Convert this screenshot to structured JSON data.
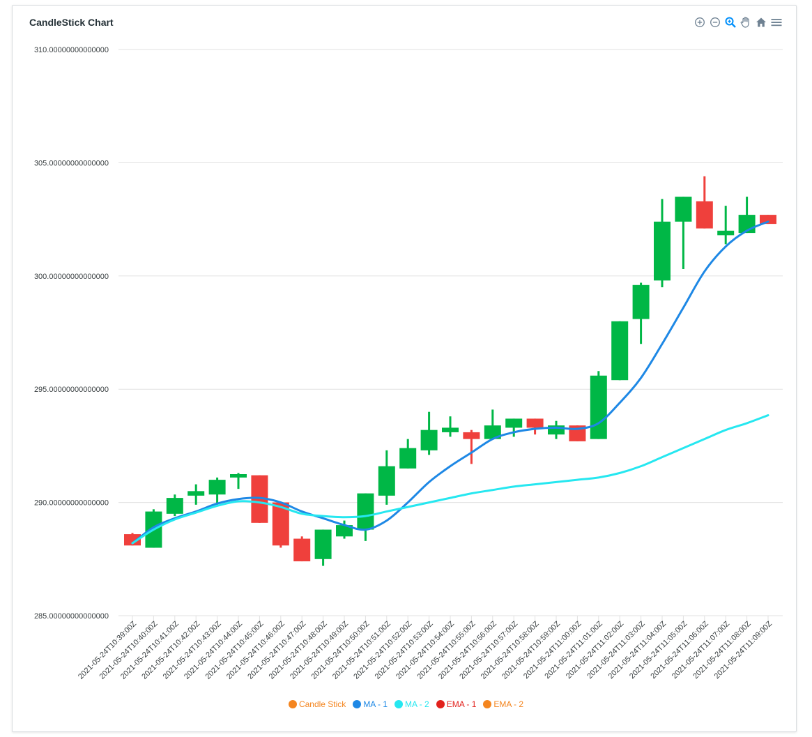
{
  "chart_data": {
    "type": "candlestick",
    "title": "CandleStick Chart",
    "ylim": [
      285,
      310
    ],
    "y_ticks": [
      "285.00000000000000",
      "290.00000000000000",
      "295.00000000000000",
      "300.00000000000000",
      "305.00000000000000",
      "310.00000000000000"
    ],
    "y_tick_values": [
      285,
      290,
      295,
      300,
      305,
      310
    ],
    "categories": [
      "2021-05-24T10:39:00Z",
      "2021-05-24T10:40:00Z",
      "2021-05-24T10:41:00Z",
      "2021-05-24T10:42:00Z",
      "2021-05-24T10:43:00Z",
      "2021-05-24T10:44:00Z",
      "2021-05-24T10:45:00Z",
      "2021-05-24T10:46:00Z",
      "2021-05-24T10:47:00Z",
      "2021-05-24T10:48:00Z",
      "2021-05-24T10:49:00Z",
      "2021-05-24T10:50:00Z",
      "2021-05-24T10:51:00Z",
      "2021-05-24T10:52:00Z",
      "2021-05-24T10:53:00Z",
      "2021-05-24T10:54:00Z",
      "2021-05-24T10:55:00Z",
      "2021-05-24T10:56:00Z",
      "2021-05-24T10:57:00Z",
      "2021-05-24T10:58:00Z",
      "2021-05-24T10:59:00Z",
      "2021-05-24T11:00:00Z",
      "2021-05-24T11:01:00Z",
      "2021-05-24T11:02:00Z",
      "2021-05-24T11:03:00Z",
      "2021-05-24T11:04:00Z",
      "2021-05-24T11:05:00Z",
      "2021-05-24T11:06:00Z",
      "2021-05-24T11:07:00Z",
      "2021-05-24T11:08:00Z",
      "2021-05-24T11:09:00Z"
    ],
    "ohlc": [
      [
        288.6,
        288.65,
        288.1,
        288.1
      ],
      [
        288.0,
        289.7,
        288.0,
        289.6
      ],
      [
        289.5,
        290.35,
        289.4,
        290.2
      ],
      [
        290.3,
        290.8,
        289.9,
        290.5
      ],
      [
        290.35,
        291.1,
        289.9,
        291.0
      ],
      [
        291.1,
        291.3,
        290.6,
        291.25
      ],
      [
        291.2,
        291.2,
        289.1,
        289.1
      ],
      [
        290.0,
        290.0,
        288.0,
        288.1
      ],
      [
        288.4,
        288.5,
        287.4,
        287.4
      ],
      [
        287.5,
        288.8,
        287.2,
        288.8
      ],
      [
        288.5,
        289.2,
        288.4,
        289.0
      ],
      [
        288.8,
        290.4,
        288.3,
        290.4
      ],
      [
        290.3,
        292.3,
        289.9,
        291.6
      ],
      [
        291.5,
        292.8,
        291.5,
        292.4
      ],
      [
        292.3,
        294.0,
        292.1,
        293.2
      ],
      [
        293.1,
        293.8,
        292.9,
        293.3
      ],
      [
        293.1,
        293.2,
        291.7,
        292.8
      ],
      [
        292.8,
        294.1,
        292.8,
        293.4
      ],
      [
        293.3,
        293.7,
        292.9,
        293.7
      ],
      [
        293.7,
        293.7,
        293.0,
        293.3
      ],
      [
        293.0,
        293.6,
        292.8,
        293.4
      ],
      [
        293.4,
        293.4,
        292.7,
        292.7
      ],
      [
        292.8,
        295.8,
        292.8,
        295.6
      ],
      [
        295.4,
        298.0,
        295.4,
        298.0
      ],
      [
        298.1,
        299.7,
        297.0,
        299.6
      ],
      [
        299.8,
        303.4,
        299.5,
        302.4
      ],
      [
        302.4,
        303.5,
        300.3,
        303.5
      ],
      [
        303.3,
        304.4,
        302.1,
        302.1
      ],
      [
        301.8,
        303.1,
        301.4,
        302.0
      ],
      [
        301.9,
        303.5,
        301.9,
        302.7
      ],
      [
        302.7,
        302.7,
        302.3,
        302.3
      ]
    ],
    "series": [
      {
        "name": "MA - 1",
        "color": "#1e88e5",
        "values": [
          288.2,
          288.9,
          289.3,
          289.6,
          289.95,
          290.15,
          290.2,
          290.0,
          289.6,
          289.3,
          289.0,
          288.8,
          289.2,
          290.0,
          290.9,
          291.6,
          292.2,
          292.8,
          293.1,
          293.25,
          293.3,
          293.25,
          293.5,
          294.4,
          295.5,
          297.0,
          298.6,
          300.2,
          301.3,
          302.0,
          302.4
        ]
      },
      {
        "name": "MA - 2",
        "color": "#26e7f0",
        "values": [
          288.2,
          288.8,
          289.25,
          289.55,
          289.85,
          290.05,
          290.0,
          289.8,
          289.5,
          289.4,
          289.35,
          289.4,
          289.6,
          289.8,
          290.0,
          290.2,
          290.4,
          290.55,
          290.7,
          290.8,
          290.9,
          291.0,
          291.1,
          291.3,
          291.6,
          292.0,
          292.4,
          292.8,
          293.2,
          293.5,
          293.85
        ]
      }
    ],
    "legend": [
      {
        "name": "Candle Stick",
        "color": "#f4851f"
      },
      {
        "name": "MA - 1",
        "color": "#1e88e5"
      },
      {
        "name": "MA - 2",
        "color": "#26e7f0"
      },
      {
        "name": "EMA - 1",
        "color": "#e2211c"
      },
      {
        "name": "EMA - 2",
        "color": "#f4851f"
      }
    ],
    "up_color": "#00b746",
    "down_color": "#ef403c",
    "grid": true,
    "legend_position": "bottom-center"
  },
  "toolbar": {
    "icons": [
      "zoom-in-icon",
      "zoom-out-icon",
      "zoom-select-icon",
      "pan-icon",
      "home-icon",
      "menu-icon"
    ]
  }
}
